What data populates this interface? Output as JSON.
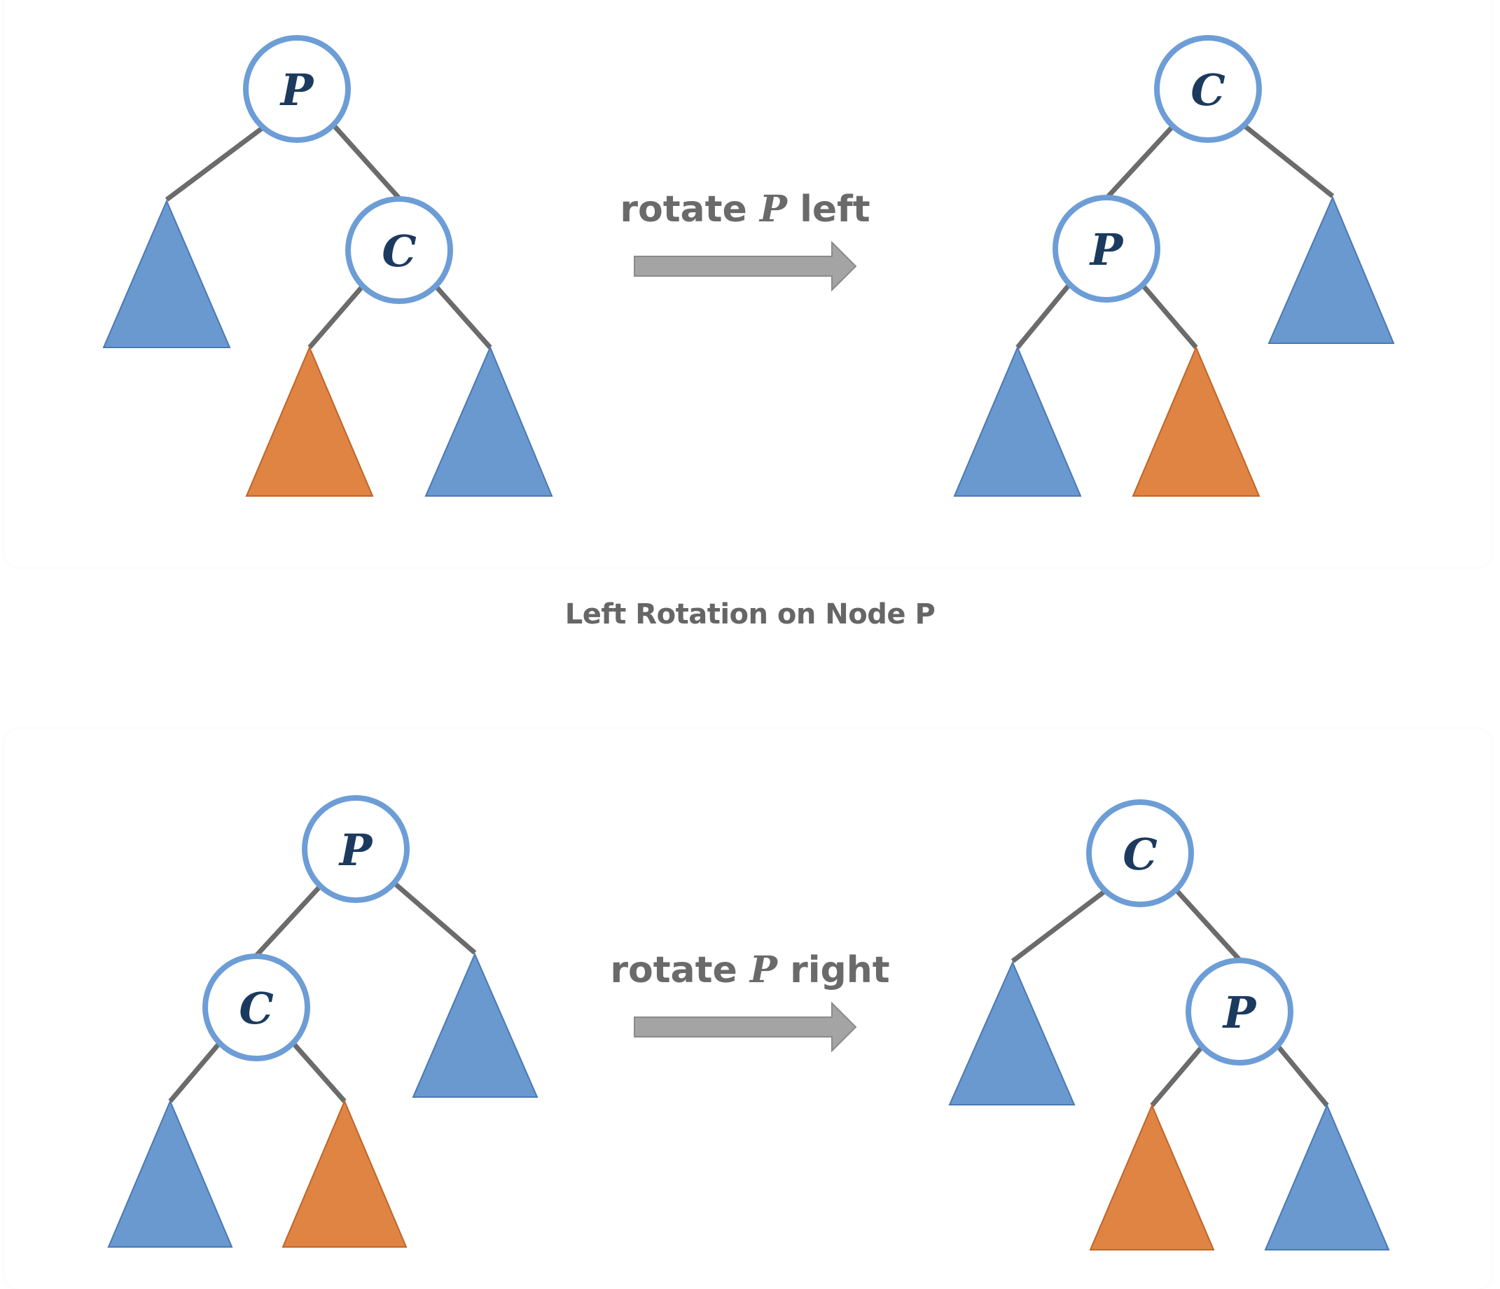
{
  "diagrams": [
    {
      "name": "left-rotation",
      "operation": {
        "prefix": "rotate ",
        "variable": "P",
        "suffix": " left"
      },
      "before": {
        "root": "P",
        "child": "C"
      },
      "after": {
        "root": "C",
        "child": "P"
      },
      "caption": "Left Rotation on Node P"
    },
    {
      "name": "right-rotation",
      "operation": {
        "prefix": "rotate ",
        "variable": "P",
        "suffix": " right"
      },
      "before": {
        "root": "P",
        "child": "C"
      },
      "after": {
        "root": "C",
        "child": "P"
      }
    }
  ],
  "colors": {
    "node_border": "#6d9dd6",
    "node_label": "#1c3a5e",
    "edge": "#6b6b6b",
    "subtree_blue": "#6a99d0",
    "subtree_orange": "#e08443",
    "arrow": "#a4a4a4",
    "text": "#6a6a6a"
  }
}
